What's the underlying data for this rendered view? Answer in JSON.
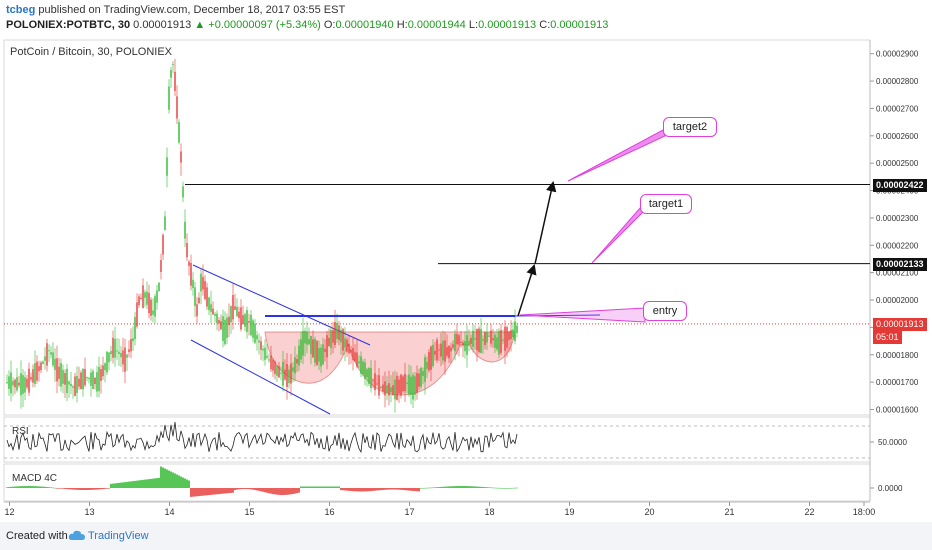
{
  "header": {
    "user": "tcbeg",
    "published_text": "published on TradingView.com, December 18, 2017 03:55 EST",
    "symbol": "POLONIEX:POTBTC, 30",
    "current": "0.00001913",
    "change": "▲ +0.00000097 (+5.34%)",
    "o_label": "O:",
    "o_val": "0.00001940",
    "h_label": "H:",
    "h_val": "0.00001944",
    "l_label": "L:",
    "l_val": "0.00001913",
    "c_label": "C:",
    "c_val": "0.00001913"
  },
  "legend": "PotCoin / Bitcoin, 30, POLONIEX",
  "panes": {
    "rsi_label": "RSI",
    "macd_label": "MACD 4C"
  },
  "footer": {
    "created": "Created with",
    "brand": "TradingView"
  },
  "colors": {
    "up": "#26a69a",
    "green": "#2eb82e",
    "red": "#e53935",
    "blue": "#2c32e8",
    "magenta": "#e040e0"
  },
  "chart_data": {
    "type": "candlestick",
    "title": "PotCoin / Bitcoin, 30, POLONIEX",
    "y_axis": {
      "ticks": [
        "0.00002900",
        "0.00002800",
        "0.00002700",
        "0.00002600",
        "0.00002500",
        "0.00002400",
        "0.00002300",
        "0.00002200",
        "0.00002100",
        "0.00002000",
        "0.00001900",
        "0.00001800",
        "0.00001700",
        "0.00001600"
      ],
      "range": [
        1.58e-05,
        2.95e-05
      ]
    },
    "x_axis": {
      "ticks": [
        "12",
        "13",
        "14",
        "15",
        "16",
        "17",
        "18",
        "19",
        "20",
        "21",
        "22",
        "18:00"
      ]
    },
    "price_levels": {
      "target2_level": "0.00002422",
      "target1_level": "0.00002133",
      "current_price": "0.00001913",
      "countdown": "05:01"
    },
    "annotations": [
      "target2",
      "target1",
      "entry"
    ],
    "price_path": [
      [
        11.95,
        1.7e-05
      ],
      [
        12.2,
        1.69e-05
      ],
      [
        12.4,
        1.76e-05
      ],
      [
        12.5,
        1.82e-05
      ],
      [
        12.6,
        1.74e-05
      ],
      [
        12.8,
        1.68e-05
      ],
      [
        12.95,
        1.72e-05
      ],
      [
        13.1,
        1.7e-05
      ],
      [
        13.2,
        1.76e-05
      ],
      [
        13.3,
        1.83e-05
      ],
      [
        13.45,
        1.78e-05
      ],
      [
        13.55,
        1.86e-05
      ],
      [
        13.62,
        2e-05
      ],
      [
        13.7,
        2.02e-05
      ],
      [
        13.8,
        1.95e-05
      ],
      [
        13.87,
        2.05e-05
      ],
      [
        13.95,
        2.3e-05
      ],
      [
        14.0,
        2.8e-05
      ],
      [
        14.05,
        2.87e-05
      ],
      [
        14.1,
        2.68e-05
      ],
      [
        14.15,
        2.5e-05
      ],
      [
        14.2,
        2.22e-05
      ],
      [
        14.25,
        2.12e-05
      ],
      [
        14.3,
        2.05e-05
      ],
      [
        14.35,
        1.95e-05
      ],
      [
        14.4,
        2.08e-05
      ],
      [
        14.5,
        1.98e-05
      ],
      [
        14.6,
        1.93e-05
      ],
      [
        14.7,
        1.88e-05
      ],
      [
        14.8,
        1.98e-05
      ],
      [
        14.9,
        1.93e-05
      ],
      [
        15.0,
        1.92e-05
      ],
      [
        15.1,
        1.86e-05
      ],
      [
        15.2,
        1.8e-05
      ],
      [
        15.35,
        1.74e-05
      ],
      [
        15.5,
        1.72e-05
      ],
      [
        15.6,
        1.78e-05
      ],
      [
        15.7,
        1.87e-05
      ],
      [
        15.8,
        1.82e-05
      ],
      [
        15.9,
        1.79e-05
      ],
      [
        16.0,
        1.85e-05
      ],
      [
        16.1,
        1.89e-05
      ],
      [
        16.2,
        1.84e-05
      ],
      [
        16.35,
        1.78e-05
      ],
      [
        16.5,
        1.72e-05
      ],
      [
        16.65,
        1.68e-05
      ],
      [
        16.8,
        1.67e-05
      ],
      [
        16.95,
        1.7e-05
      ],
      [
        17.05,
        1.68e-05
      ],
      [
        17.15,
        1.72e-05
      ],
      [
        17.25,
        1.78e-05
      ],
      [
        17.35,
        1.82e-05
      ],
      [
        17.5,
        1.81e-05
      ],
      [
        17.6,
        1.86e-05
      ],
      [
        17.7,
        1.83e-05
      ],
      [
        17.8,
        1.86e-05
      ],
      [
        17.9,
        1.85e-05
      ],
      [
        18.0,
        1.87e-05
      ],
      [
        18.1,
        1.84e-05
      ],
      [
        18.2,
        1.86e-05
      ],
      [
        18.3,
        1.88e-05
      ],
      [
        18.4,
        1.91e-05
      ]
    ],
    "rsi_axis": {
      "ticks": [
        "50.0000"
      ]
    },
    "macd_axis": {
      "ticks": [
        "0.0000"
      ]
    }
  }
}
